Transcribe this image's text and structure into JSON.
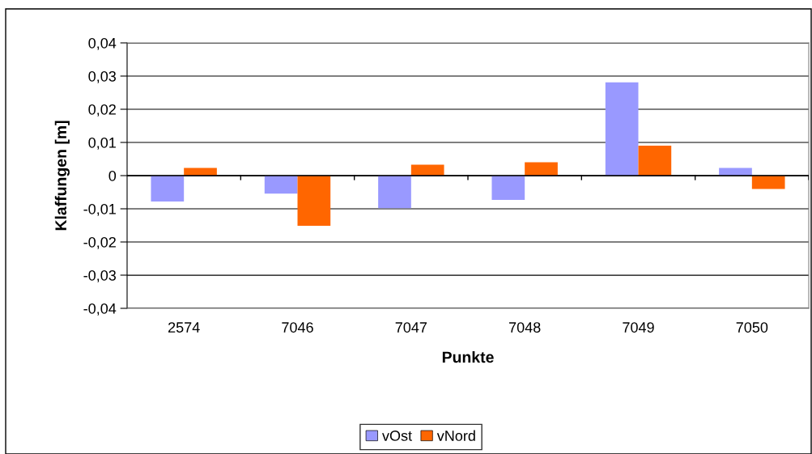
{
  "chart_data": {
    "type": "bar",
    "xlabel": "Punkte",
    "ylabel": "Klaffungen [m]",
    "categories": [
      "2574",
      "7046",
      "7047",
      "7048",
      "7049",
      "7050"
    ],
    "series": [
      {
        "name": "vOst",
        "color": "#9999ff",
        "values": [
          -0.0078,
          -0.0054,
          -0.0098,
          -0.0073,
          0.0281,
          0.0023
        ]
      },
      {
        "name": "vNord",
        "color": "#ff6600",
        "values": [
          0.0023,
          -0.0151,
          0.0033,
          0.004,
          0.009,
          -0.004
        ]
      }
    ],
    "ylim": [
      -0.04,
      0.04
    ],
    "yticks": [
      {
        "value": -0.04,
        "label": "-0,04"
      },
      {
        "value": -0.03,
        "label": "-0,03"
      },
      {
        "value": -0.02,
        "label": "-0,02"
      },
      {
        "value": -0.01,
        "label": "-0,01"
      },
      0,
      {
        "value": 0.01,
        "label": "0,01"
      },
      {
        "value": 0.02,
        "label": "0,02"
      },
      {
        "value": 0.03,
        "label": "0,03"
      },
      {
        "value": 0.04,
        "label": "0,04"
      }
    ],
    "grid": "y",
    "legend": "bottom"
  }
}
